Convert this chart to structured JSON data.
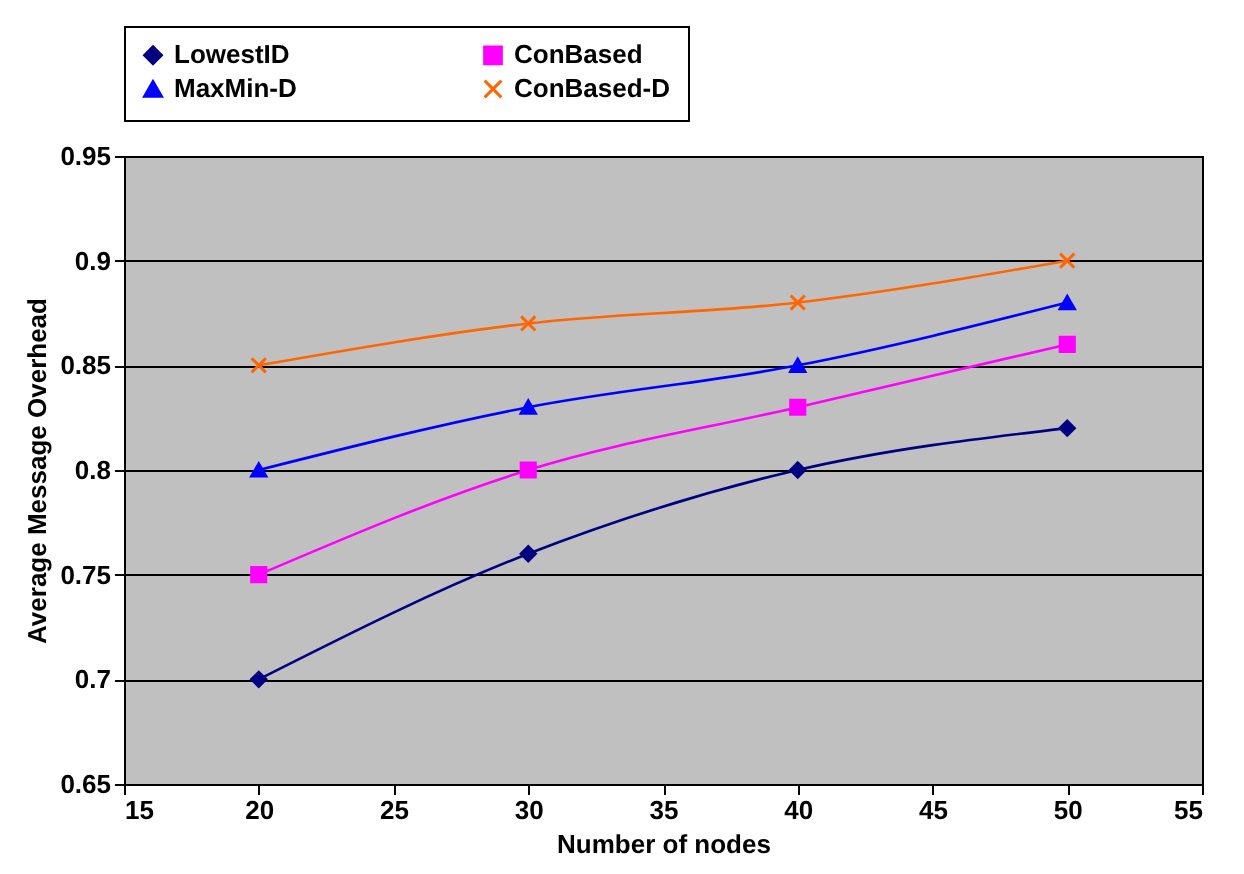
{
  "chart_data": {
    "type": "line",
    "xlabel": "Number of nodes",
    "ylabel": "Average Message Overhead",
    "x": [
      20,
      30,
      40,
      50
    ],
    "series": [
      {
        "name": "LowestID",
        "color": "#000080",
        "marker": "diamond",
        "values": [
          0.7,
          0.76,
          0.8,
          0.82
        ]
      },
      {
        "name": "ConBased",
        "color": "#ff00ff",
        "marker": "square",
        "values": [
          0.75,
          0.8,
          0.83,
          0.86
        ]
      },
      {
        "name": "MaxMin-D",
        "color": "#0000ff",
        "marker": "triangle",
        "values": [
          0.8,
          0.83,
          0.85,
          0.88
        ]
      },
      {
        "name": "ConBased-D",
        "color": "#ff6600",
        "marker": "cross",
        "values": [
          0.85,
          0.87,
          0.88,
          0.9
        ]
      }
    ],
    "xlim": [
      15,
      55
    ],
    "xticks": [
      15,
      20,
      25,
      30,
      35,
      40,
      45,
      50,
      55
    ],
    "ylim": [
      0.65,
      0.95
    ],
    "yticks": [
      0.65,
      0.7,
      0.75,
      0.8,
      0.85,
      0.9,
      0.95
    ],
    "grid": "y",
    "legend": "top",
    "line_style": "solid"
  }
}
